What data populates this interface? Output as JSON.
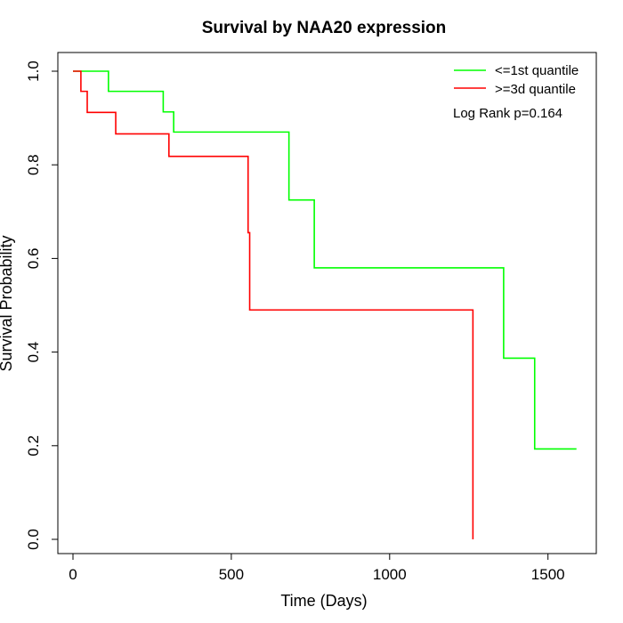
{
  "chart_data": {
    "type": "line",
    "title": "Survival by NAA20 expression",
    "xlabel": "Time (Days)",
    "ylabel": "Survival Probability",
    "xlim": [
      0,
      1650
    ],
    "ylim": [
      0,
      1.0
    ],
    "x_ticks": [
      "0",
      "500",
      "1000",
      "1500"
    ],
    "y_ticks": [
      "0.0",
      "0.2",
      "0.4",
      "0.6",
      "0.8",
      "1.0"
    ],
    "grid": false,
    "legend_position": "top-right",
    "annotation": "Log Rank p=0.164",
    "series": [
      {
        "name": "<=1st quantile",
        "color": "#00ff00",
        "step_x": [
          0,
          112,
          285,
          318,
          682,
          762,
          1360,
          1458,
          1590
        ],
        "step_y": [
          1.0,
          0.957,
          0.913,
          0.87,
          0.725,
          0.58,
          0.387,
          0.193,
          0.193
        ]
      },
      {
        "name": ">=3d quantile",
        "color": "#ff0000",
        "step_x": [
          0,
          25,
          45,
          135,
          303,
          553,
          558,
          1263,
          1263
        ],
        "step_y": [
          1.0,
          0.957,
          0.912,
          0.866,
          0.818,
          0.655,
          0.49,
          0.0,
          0.0
        ]
      }
    ]
  }
}
